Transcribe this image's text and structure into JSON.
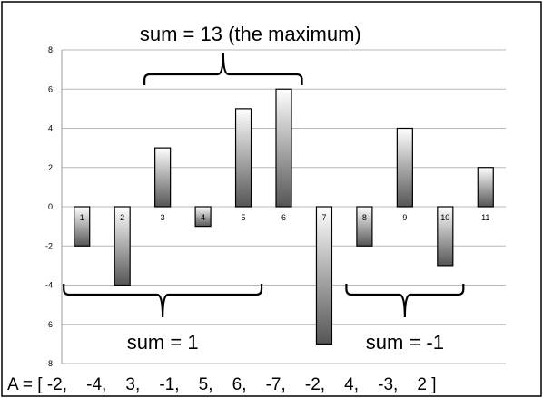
{
  "chart_data": {
    "type": "bar",
    "categories": [
      "1",
      "2",
      "3",
      "4",
      "5",
      "6",
      "7",
      "8",
      "9",
      "10",
      "11"
    ],
    "values": [
      -2,
      -4,
      3,
      -1,
      5,
      6,
      -7,
      -2,
      4,
      -3,
      2
    ],
    "ylim": [
      -8,
      8
    ],
    "yticks": [
      "8",
      "6",
      "4",
      "2",
      "0",
      "-2",
      "-4",
      "-6",
      "-8"
    ],
    "grid": true,
    "bar_gradient": [
      "#ffffff",
      "#555555"
    ],
    "annotations": [
      {
        "text": "sum = 13 (the maximum)",
        "from_index": 3,
        "to_index": 6,
        "brace": "above"
      },
      {
        "text": "sum = 1",
        "from_index": 1,
        "to_index": 5,
        "brace": "below"
      },
      {
        "text": "sum = -1",
        "from_index": 8,
        "to_index": 10,
        "brace": "below"
      }
    ],
    "array_label": "A = [ -2,    -4,    3,    -1,    5,    6,    -7,    -2,    4,    -3,    2 ]"
  }
}
